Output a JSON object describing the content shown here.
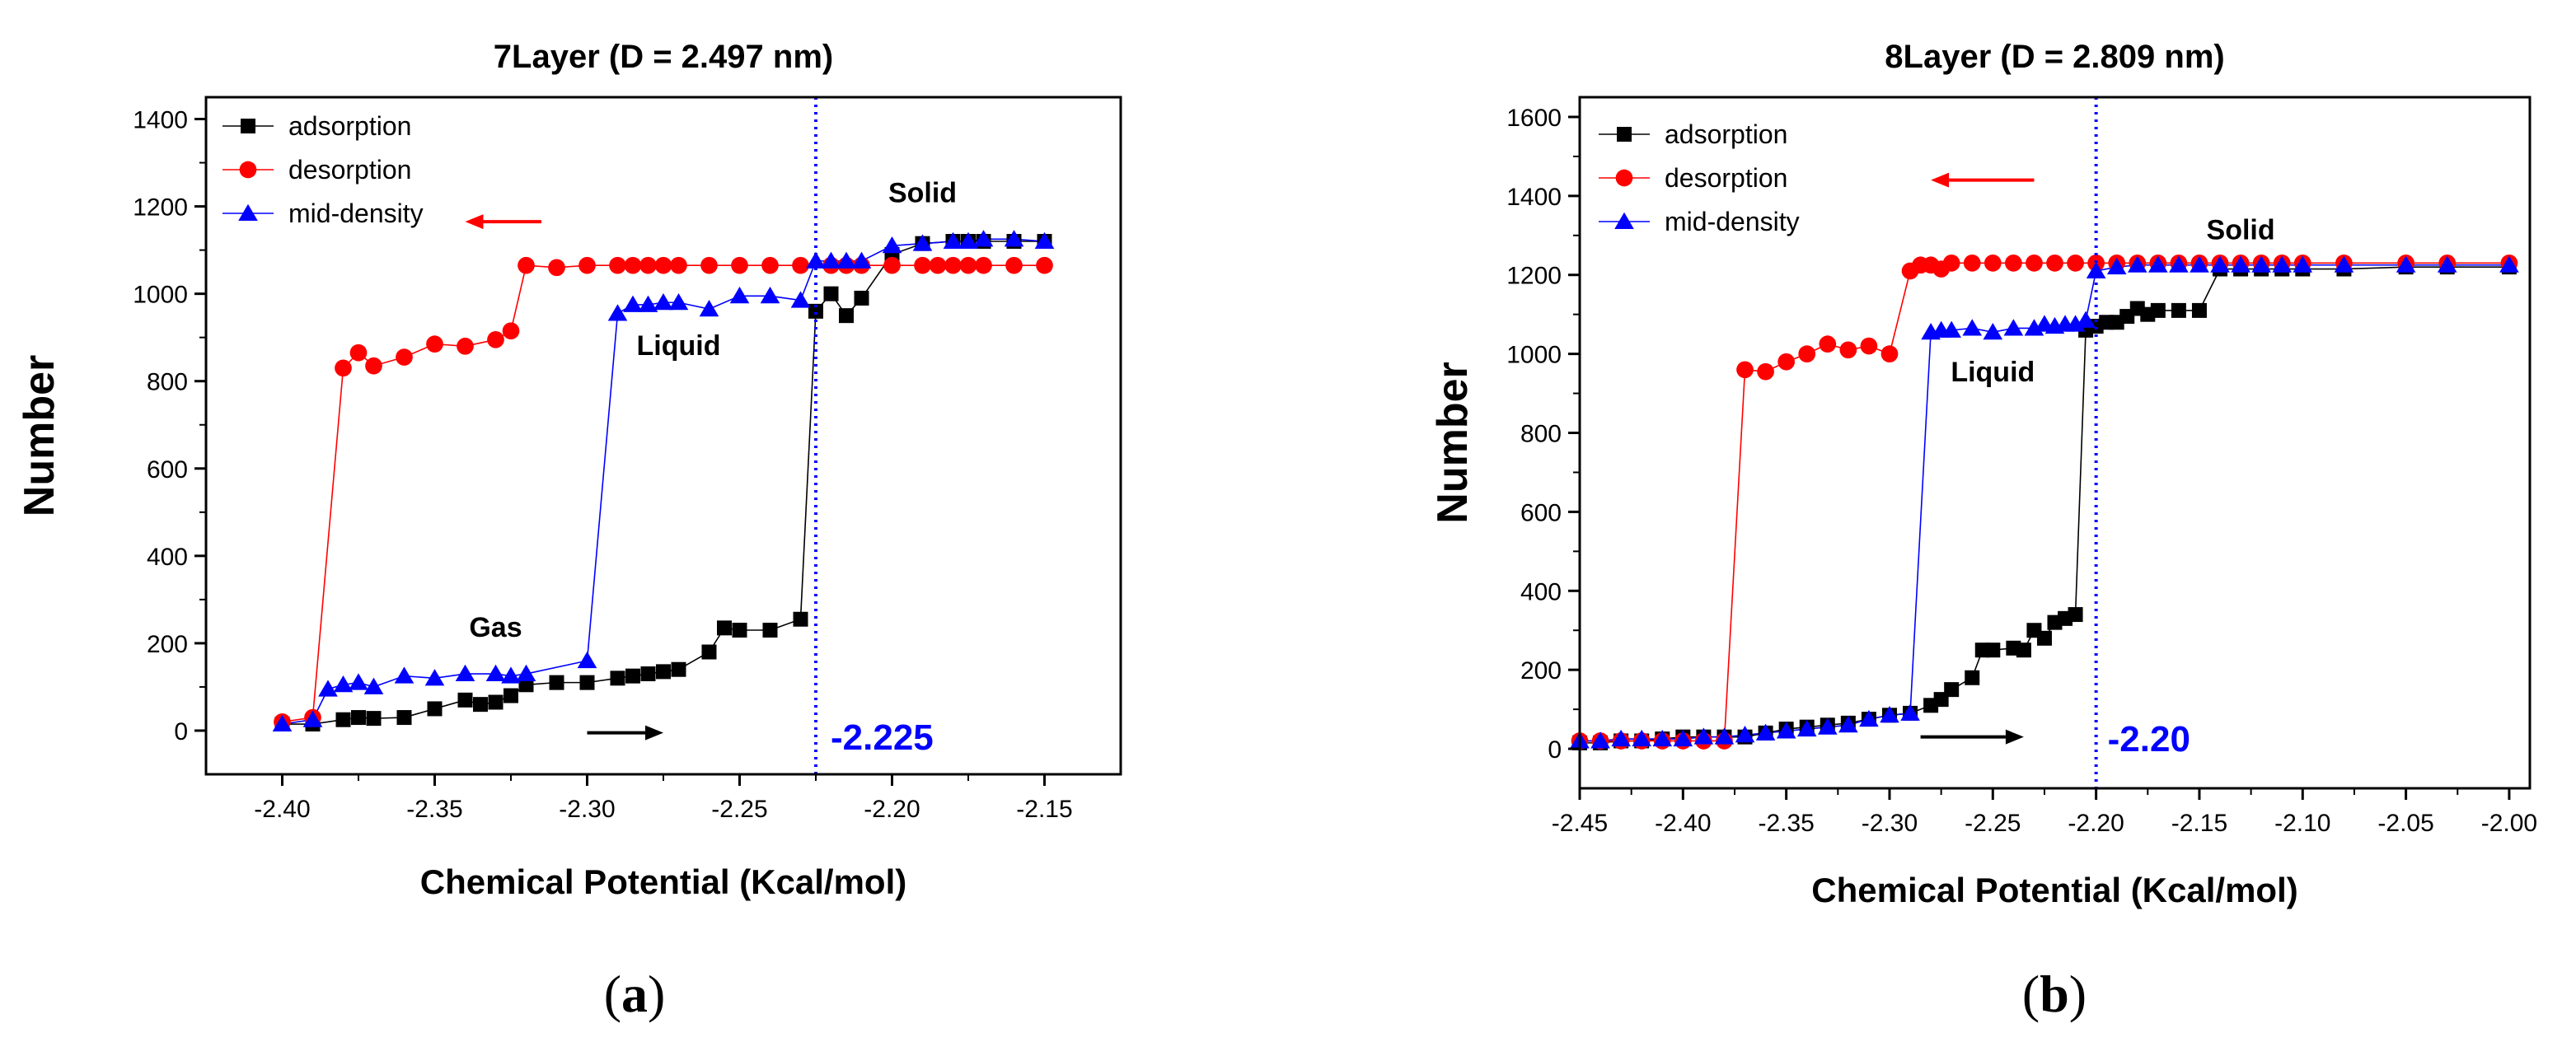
{
  "chart_data": [
    {
      "type": "line",
      "panel_label": "(a)",
      "panel_letter": "a",
      "title": "7Layer (D = 2.497 nm)",
      "xlabel": "Chemical Potential (Kcal/mol)",
      "ylabel": "Number",
      "xlim": [
        -2.425,
        -2.125
      ],
      "ylim": [
        -100,
        1450
      ],
      "xticks": [
        -2.4,
        -2.35,
        -2.3,
        -2.25,
        -2.2,
        -2.15
      ],
      "xtick_labels": [
        "-2.40",
        "-2.35",
        "-2.30",
        "-2.25",
        "-2.20",
        "-2.15"
      ],
      "yticks": [
        0,
        200,
        400,
        600,
        800,
        1000,
        1200,
        1400
      ],
      "ytick_labels": [
        "0",
        "200",
        "400",
        "600",
        "800",
        "1000",
        "1200",
        "1400"
      ],
      "legend": [
        "adsorption",
        "desorption",
        "mid-density"
      ],
      "legend_position": "top-left",
      "vline": {
        "x": -2.225,
        "label": "-2.225"
      },
      "annotations": [
        {
          "text": "Solid",
          "x": -2.19,
          "y": 1210
        },
        {
          "text": "Liquid",
          "x": -2.27,
          "y": 860
        },
        {
          "text": "Gas",
          "x": -2.33,
          "y": 215
        }
      ],
      "arrows": [
        {
          "direction": "left",
          "color": "#ff0000",
          "x_from": -2.315,
          "x_to": -2.34,
          "y": 1165
        },
        {
          "direction": "right",
          "color": "#000000",
          "x_from": -2.3,
          "x_to": -2.275,
          "y": -5
        }
      ],
      "series": [
        {
          "name": "adsorption",
          "color": "#000000",
          "marker": "square",
          "x": [
            -2.4,
            -2.39,
            -2.38,
            -2.375,
            -2.37,
            -2.36,
            -2.35,
            -2.34,
            -2.335,
            -2.33,
            -2.325,
            -2.32,
            -2.31,
            -2.3,
            -2.29,
            -2.285,
            -2.28,
            -2.275,
            -2.27,
            -2.26,
            -2.255,
            -2.25,
            -2.24,
            -2.23,
            -2.225,
            -2.22,
            -2.215,
            -2.21,
            -2.2,
            -2.19,
            -2.18,
            -2.175,
            -2.17,
            -2.16,
            -2.15
          ],
          "y": [
            15,
            15,
            25,
            30,
            28,
            30,
            50,
            70,
            60,
            65,
            80,
            105,
            110,
            110,
            120,
            125,
            130,
            135,
            140,
            180,
            235,
            230,
            230,
            255,
            960,
            1000,
            950,
            990,
            1090,
            1115,
            1120,
            1120,
            1120,
            1120,
            1120
          ]
        },
        {
          "name": "desorption",
          "color": "#ff0000",
          "marker": "circle",
          "x": [
            -2.4,
            -2.39,
            -2.38,
            -2.375,
            -2.37,
            -2.36,
            -2.35,
            -2.34,
            -2.33,
            -2.325,
            -2.32,
            -2.31,
            -2.3,
            -2.29,
            -2.285,
            -2.28,
            -2.275,
            -2.27,
            -2.26,
            -2.25,
            -2.24,
            -2.23,
            -2.22,
            -2.215,
            -2.21,
            -2.2,
            -2.19,
            -2.185,
            -2.18,
            -2.175,
            -2.17,
            -2.16,
            -2.15
          ],
          "y": [
            20,
            30,
            830,
            865,
            835,
            855,
            885,
            880,
            895,
            915,
            1065,
            1060,
            1065,
            1065,
            1065,
            1065,
            1065,
            1065,
            1065,
            1065,
            1065,
            1065,
            1065,
            1065,
            1065,
            1065,
            1065,
            1065,
            1065,
            1065,
            1065,
            1065,
            1065
          ]
        },
        {
          "name": "mid-density",
          "color": "#0000ff",
          "marker": "triangle",
          "x": [
            -2.4,
            -2.39,
            -2.385,
            -2.38,
            -2.375,
            -2.37,
            -2.36,
            -2.35,
            -2.34,
            -2.33,
            -2.325,
            -2.32,
            -2.3,
            -2.29,
            -2.285,
            -2.28,
            -2.275,
            -2.27,
            -2.26,
            -2.25,
            -2.24,
            -2.23,
            -2.225,
            -2.22,
            -2.215,
            -2.21,
            -2.2,
            -2.19,
            -2.18,
            -2.175,
            -2.17,
            -2.16,
            -2.15
          ],
          "y": [
            15,
            25,
            95,
            105,
            110,
            100,
            125,
            120,
            130,
            130,
            125,
            130,
            160,
            955,
            975,
            975,
            980,
            980,
            965,
            995,
            995,
            985,
            1075,
            1075,
            1075,
            1075,
            1110,
            1115,
            1120,
            1120,
            1125,
            1125,
            1120
          ]
        }
      ]
    },
    {
      "type": "line",
      "panel_label": "(b)",
      "panel_letter": "b",
      "title": "8Layer (D = 2.809 nm)",
      "xlabel": "Chemical Potential (Kcal/mol)",
      "ylabel": "Number",
      "xlim": [
        -2.45,
        -1.99
      ],
      "ylim": [
        -100,
        1650
      ],
      "xticks": [
        -2.45,
        -2.4,
        -2.35,
        -2.3,
        -2.25,
        -2.2,
        -2.15,
        -2.1,
        -2.05,
        -2.0
      ],
      "xtick_labels": [
        "-2.45",
        "-2.40",
        "-2.35",
        "-2.30",
        "-2.25",
        "-2.20",
        "-2.15",
        "-2.10",
        "-2.05",
        "-2.00"
      ],
      "yticks": [
        0,
        200,
        400,
        600,
        800,
        1000,
        1200,
        1400,
        1600
      ],
      "ytick_labels": [
        "0",
        "200",
        "400",
        "600",
        "800",
        "1000",
        "1200",
        "1400",
        "1600"
      ],
      "legend": [
        "adsorption",
        "desorption",
        "mid-density"
      ],
      "legend_position": "top-left",
      "vline": {
        "x": -2.2,
        "label": "-2.20"
      },
      "annotations": [
        {
          "text": "Solid",
          "x": -2.13,
          "y": 1290
        },
        {
          "text": "Liquid",
          "x": -2.25,
          "y": 930
        }
      ],
      "arrows": [
        {
          "direction": "left",
          "color": "#ff0000",
          "x_from": -2.23,
          "x_to": -2.28,
          "y": 1440
        },
        {
          "direction": "right",
          "color": "#000000",
          "x_from": -2.285,
          "x_to": -2.235,
          "y": 30
        }
      ],
      "series": [
        {
          "name": "adsorption",
          "color": "#000000",
          "marker": "square",
          "x": [
            -2.45,
            -2.44,
            -2.43,
            -2.42,
            -2.41,
            -2.4,
            -2.39,
            -2.38,
            -2.37,
            -2.36,
            -2.35,
            -2.34,
            -2.33,
            -2.32,
            -2.31,
            -2.3,
            -2.29,
            -2.28,
            -2.275,
            -2.27,
            -2.26,
            -2.255,
            -2.25,
            -2.24,
            -2.235,
            -2.23,
            -2.225,
            -2.22,
            -2.215,
            -2.21,
            -2.205,
            -2.2,
            -2.195,
            -2.19,
            -2.185,
            -2.18,
            -2.175,
            -2.17,
            -2.16,
            -2.15,
            -2.14,
            -2.13,
            -2.12,
            -2.11,
            -2.1,
            -2.08,
            -2.05,
            -2.03,
            -2.0
          ],
          "y": [
            15,
            15,
            20,
            20,
            25,
            30,
            30,
            30,
            30,
            40,
            50,
            55,
            60,
            65,
            75,
            85,
            90,
            110,
            125,
            150,
            180,
            250,
            250,
            255,
            250,
            300,
            280,
            320,
            330,
            340,
            1060,
            1070,
            1080,
            1080,
            1095,
            1115,
            1100,
            1110,
            1110,
            1110,
            1215,
            1215,
            1215,
            1215,
            1215,
            1215,
            1220,
            1220,
            1220
          ]
        },
        {
          "name": "desorption",
          "color": "#ff0000",
          "marker": "circle",
          "x": [
            -2.45,
            -2.44,
            -2.43,
            -2.42,
            -2.41,
            -2.4,
            -2.39,
            -2.38,
            -2.37,
            -2.36,
            -2.35,
            -2.34,
            -2.33,
            -2.32,
            -2.31,
            -2.3,
            -2.29,
            -2.285,
            -2.28,
            -2.275,
            -2.27,
            -2.26,
            -2.25,
            -2.24,
            -2.23,
            -2.22,
            -2.21,
            -2.2,
            -2.19,
            -2.18,
            -2.17,
            -2.16,
            -2.15,
            -2.14,
            -2.13,
            -2.12,
            -2.11,
            -2.1,
            -2.08,
            -2.05,
            -2.03,
            -2.0
          ],
          "y": [
            20,
            20,
            20,
            20,
            20,
            20,
            20,
            20,
            960,
            955,
            980,
            1000,
            1025,
            1010,
            1020,
            1000,
            1210,
            1225,
            1225,
            1215,
            1230,
            1230,
            1230,
            1230,
            1230,
            1230,
            1230,
            1230,
            1230,
            1230,
            1230,
            1230,
            1230,
            1230,
            1230,
            1230,
            1230,
            1230,
            1230,
            1230,
            1230,
            1230
          ]
        },
        {
          "name": "mid-density",
          "color": "#0000ff",
          "marker": "triangle",
          "x": [
            -2.45,
            -2.44,
            -2.43,
            -2.42,
            -2.41,
            -2.4,
            -2.39,
            -2.38,
            -2.37,
            -2.36,
            -2.35,
            -2.34,
            -2.33,
            -2.32,
            -2.31,
            -2.3,
            -2.29,
            -2.28,
            -2.275,
            -2.27,
            -2.26,
            -2.25,
            -2.24,
            -2.23,
            -2.225,
            -2.22,
            -2.215,
            -2.21,
            -2.205,
            -2.2,
            -2.19,
            -2.18,
            -2.17,
            -2.16,
            -2.15,
            -2.14,
            -2.13,
            -2.12,
            -2.11,
            -2.1,
            -2.08,
            -2.05,
            -2.03,
            -2.0
          ],
          "y": [
            20,
            20,
            25,
            25,
            25,
            25,
            30,
            30,
            35,
            40,
            45,
            50,
            55,
            60,
            75,
            85,
            90,
            1055,
            1060,
            1060,
            1065,
            1055,
            1065,
            1065,
            1075,
            1070,
            1075,
            1075,
            1085,
            1210,
            1220,
            1225,
            1225,
            1225,
            1225,
            1225,
            1225,
            1225,
            1225,
            1225,
            1225,
            1225,
            1225,
            1225
          ]
        }
      ]
    }
  ]
}
